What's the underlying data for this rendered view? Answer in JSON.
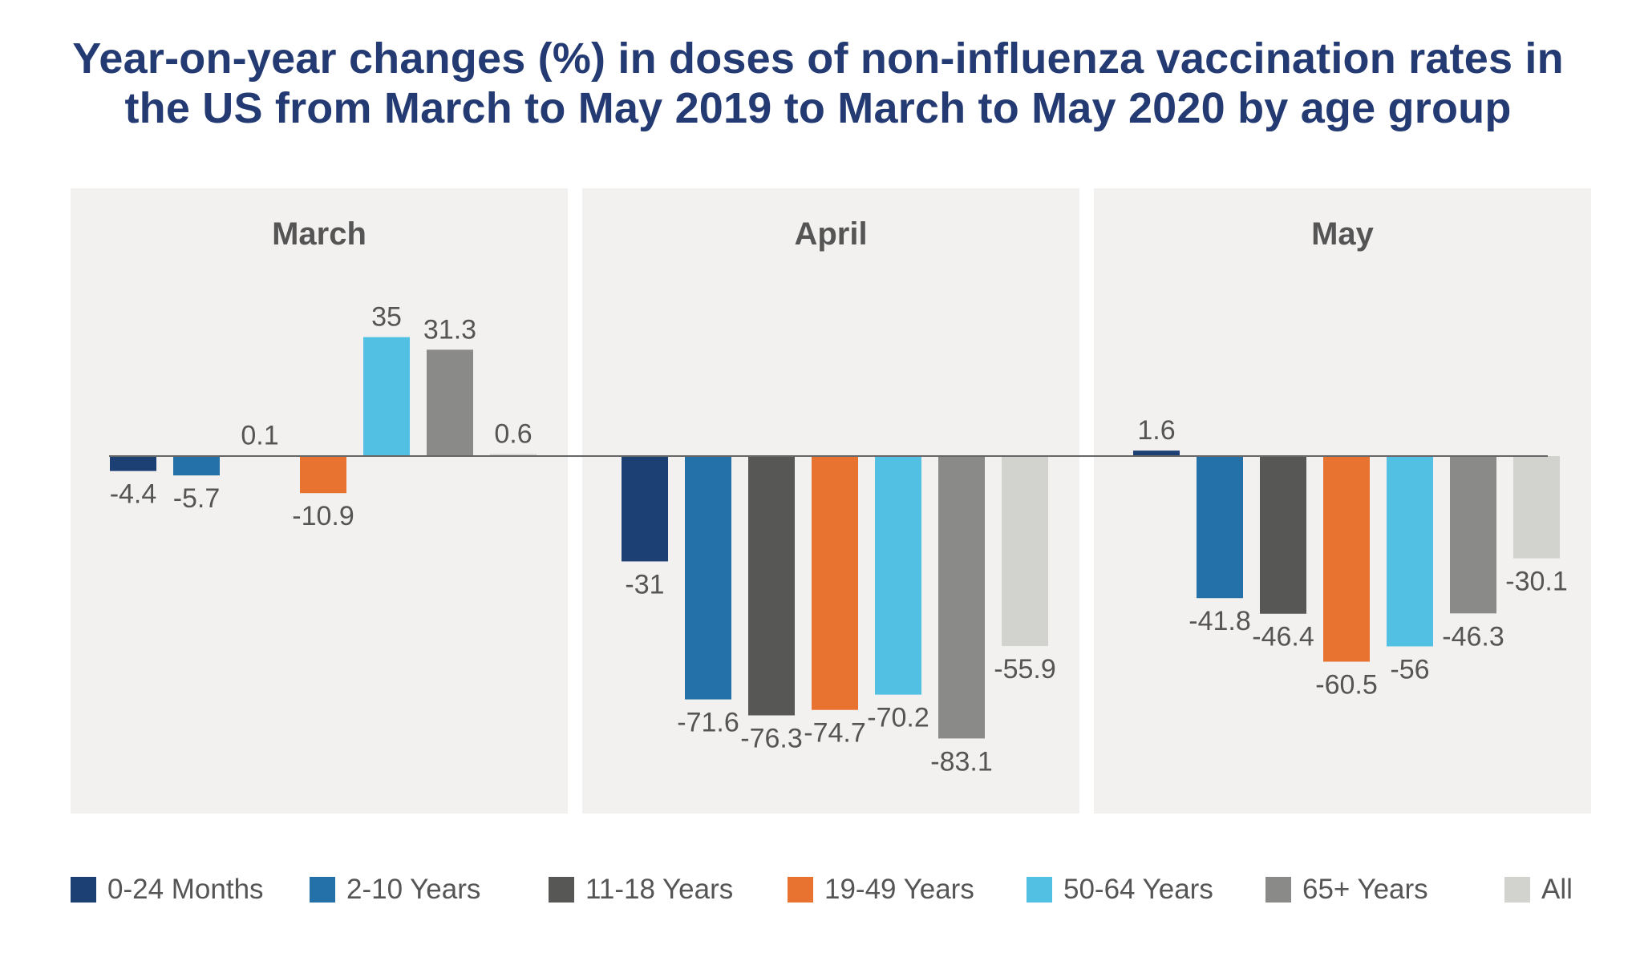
{
  "title_lines": [
    "Year-on-year changes (%) in doses of non-influenza vaccination rates in",
    "the US from March to May 2019 to March to May 2020 by age group"
  ],
  "colors": {
    "title": "#243a73",
    "panel_bg": "#f2f1ef",
    "text": "#555555",
    "zero_line": "#666666",
    "series": [
      "#1c3f74",
      "#2471aa",
      "#575756",
      "#e87230",
      "#52c0e3",
      "#8a8a89",
      "#d2d2cf"
    ]
  },
  "chart_data": {
    "type": "bar",
    "title": "Year-on-year changes (%) in doses of non-influenza vaccination rates in the US from March to May 2019 to March to May 2020 by age group",
    "categories": [
      "March",
      "April",
      "May"
    ],
    "series": [
      {
        "name": "0-24 Months",
        "values": [
          -4.4,
          -31,
          1.6
        ],
        "labels": [
          "-4.4",
          "-31",
          "1.6"
        ]
      },
      {
        "name": "2-10 Years",
        "values": [
          -5.7,
          -71.6,
          -41.8
        ],
        "labels": [
          "-5.7",
          "-71.6",
          "-41.8"
        ]
      },
      {
        "name": "11-18 Years",
        "values": [
          0.1,
          -76.3,
          -46.4
        ],
        "labels": [
          "0.1",
          "-76.3",
          "-46.4"
        ]
      },
      {
        "name": "19-49 Years",
        "values": [
          -10.9,
          -74.7,
          -60.5
        ],
        "labels": [
          "-10.9",
          "-74.7",
          "-60.5"
        ]
      },
      {
        "name": "50-64 Years",
        "values": [
          35,
          -70.2,
          -56
        ],
        "labels": [
          "35",
          "-70.2",
          "-56"
        ]
      },
      {
        "name": "65+ Years",
        "values": [
          31.3,
          -83.1,
          -46.3
        ],
        "labels": [
          "31.3",
          "-83.1",
          "-46.3"
        ]
      },
      {
        "name": "All",
        "values": [
          0.6,
          -55.9,
          -30.1
        ],
        "labels": [
          "0.6",
          "-55.9",
          "-30.1"
        ]
      }
    ],
    "xlabel": "",
    "ylabel": "",
    "ylim": [
      -105,
      80
    ],
    "grid": false,
    "legend_position": "bottom"
  }
}
